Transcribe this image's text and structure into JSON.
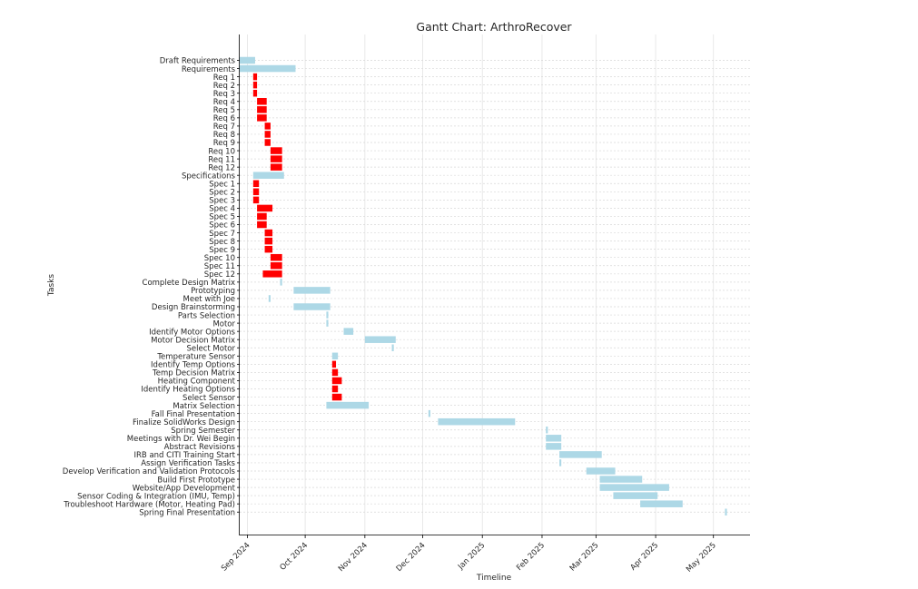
{
  "chart_data": {
    "type": "gantt",
    "title": "Gantt Chart: ArthroRecover",
    "xlabel": "Timeline",
    "ylabel": "Tasks",
    "xlim": [
      "2024-08-28",
      "2025-05-20"
    ],
    "x_ticks": [
      {
        "date": "2024-09-01",
        "label": "Sep 2024"
      },
      {
        "date": "2024-10-01",
        "label": "Oct 2024"
      },
      {
        "date": "2024-11-01",
        "label": "Nov 2024"
      },
      {
        "date": "2024-12-01",
        "label": "Dec 2024"
      },
      {
        "date": "2025-01-01",
        "label": "Jan 2025"
      },
      {
        "date": "2025-02-01",
        "label": "Feb 2025"
      },
      {
        "date": "2025-03-01",
        "label": "Mar 2025"
      },
      {
        "date": "2025-04-01",
        "label": "Apr 2025"
      },
      {
        "date": "2025-05-01",
        "label": "May 2025"
      }
    ],
    "grid": true,
    "colors": {
      "normal": "#add8e6",
      "highlight": "#ff0000"
    },
    "tasks": [
      {
        "name": "Draft Requirements",
        "start": "2024-08-28",
        "end": "2024-09-05",
        "highlight": false
      },
      {
        "name": "Requirements",
        "start": "2024-08-28",
        "end": "2024-09-26",
        "highlight": false
      },
      {
        "name": "Req 1",
        "start": "2024-09-04",
        "end": "2024-09-06",
        "highlight": true
      },
      {
        "name": "Req 2",
        "start": "2024-09-04",
        "end": "2024-09-06",
        "highlight": true
      },
      {
        "name": "Req 3",
        "start": "2024-09-04",
        "end": "2024-09-06",
        "highlight": true
      },
      {
        "name": "Req 4",
        "start": "2024-09-06",
        "end": "2024-09-11",
        "highlight": true
      },
      {
        "name": "Req 5",
        "start": "2024-09-06",
        "end": "2024-09-11",
        "highlight": true
      },
      {
        "name": "Req 6",
        "start": "2024-09-06",
        "end": "2024-09-11",
        "highlight": true
      },
      {
        "name": "Req 7",
        "start": "2024-09-10",
        "end": "2024-09-13",
        "highlight": true
      },
      {
        "name": "Req 8",
        "start": "2024-09-10",
        "end": "2024-09-13",
        "highlight": true
      },
      {
        "name": "Req 9",
        "start": "2024-09-10",
        "end": "2024-09-13",
        "highlight": true
      },
      {
        "name": "Req 10",
        "start": "2024-09-13",
        "end": "2024-09-19",
        "highlight": true
      },
      {
        "name": "Req 11",
        "start": "2024-09-13",
        "end": "2024-09-19",
        "highlight": true
      },
      {
        "name": "Req 12",
        "start": "2024-09-13",
        "end": "2024-09-19",
        "highlight": true
      },
      {
        "name": "Specifications",
        "start": "2024-09-04",
        "end": "2024-09-20",
        "highlight": false
      },
      {
        "name": "Spec 1",
        "start": "2024-09-04",
        "end": "2024-09-07",
        "highlight": true
      },
      {
        "name": "Spec 2",
        "start": "2024-09-04",
        "end": "2024-09-07",
        "highlight": true
      },
      {
        "name": "Spec 3",
        "start": "2024-09-04",
        "end": "2024-09-07",
        "highlight": true
      },
      {
        "name": "Spec 4",
        "start": "2024-09-06",
        "end": "2024-09-14",
        "highlight": true
      },
      {
        "name": "Spec 5",
        "start": "2024-09-06",
        "end": "2024-09-11",
        "highlight": true
      },
      {
        "name": "Spec 6",
        "start": "2024-09-06",
        "end": "2024-09-11",
        "highlight": true
      },
      {
        "name": "Spec 7",
        "start": "2024-09-10",
        "end": "2024-09-14",
        "highlight": true
      },
      {
        "name": "Spec 8",
        "start": "2024-09-10",
        "end": "2024-09-14",
        "highlight": true
      },
      {
        "name": "Spec 9",
        "start": "2024-09-10",
        "end": "2024-09-14",
        "highlight": true
      },
      {
        "name": "Spec 10",
        "start": "2024-09-13",
        "end": "2024-09-19",
        "highlight": true
      },
      {
        "name": "Spec 11",
        "start": "2024-09-13",
        "end": "2024-09-19",
        "highlight": true
      },
      {
        "name": "Spec 12",
        "start": "2024-09-09",
        "end": "2024-09-19",
        "highlight": true
      },
      {
        "name": "Complete Design Matrix",
        "start": "2024-09-18",
        "end": "2024-09-19",
        "highlight": false
      },
      {
        "name": "Prototyping",
        "start": "2024-09-25",
        "end": "2024-10-14",
        "highlight": false
      },
      {
        "name": "Meet with Joe",
        "start": "2024-09-12",
        "end": "2024-09-13",
        "highlight": false
      },
      {
        "name": "Design Brainstorming",
        "start": "2024-09-25",
        "end": "2024-10-14",
        "highlight": false
      },
      {
        "name": "Parts Selection",
        "start": "2024-10-12",
        "end": "2024-10-13",
        "highlight": false
      },
      {
        "name": "Motor",
        "start": "2024-10-12",
        "end": "2024-10-13",
        "highlight": false
      },
      {
        "name": "Identify Motor Options",
        "start": "2024-10-21",
        "end": "2024-10-26",
        "highlight": false
      },
      {
        "name": "Motor Decision Matrix",
        "start": "2024-11-01",
        "end": "2024-11-17",
        "highlight": false
      },
      {
        "name": "Select Motor",
        "start": "2024-11-15",
        "end": "2024-11-16",
        "highlight": false
      },
      {
        "name": "Temperature Sensor",
        "start": "2024-10-15",
        "end": "2024-10-18",
        "highlight": false
      },
      {
        "name": "Identify Temp Options",
        "start": "2024-10-15",
        "end": "2024-10-17",
        "highlight": true
      },
      {
        "name": "Temp Decision Matrix",
        "start": "2024-10-15",
        "end": "2024-10-18",
        "highlight": true
      },
      {
        "name": "Heating Component",
        "start": "2024-10-15",
        "end": "2024-10-20",
        "highlight": true
      },
      {
        "name": "Identify Heating Options",
        "start": "2024-10-15",
        "end": "2024-10-18",
        "highlight": true
      },
      {
        "name": "Select Sensor",
        "start": "2024-10-15",
        "end": "2024-10-20",
        "highlight": true
      },
      {
        "name": "Matrix Selection",
        "start": "2024-10-12",
        "end": "2024-11-03",
        "highlight": false
      },
      {
        "name": "Fall Final Presentation",
        "start": "2024-12-04",
        "end": "2024-12-05",
        "highlight": false
      },
      {
        "name": "Finalize SolidWorks Design",
        "start": "2024-12-09",
        "end": "2025-01-18",
        "highlight": false
      },
      {
        "name": "Spring Semester",
        "start": "2025-02-03",
        "end": "2025-02-04",
        "highlight": false
      },
      {
        "name": "Meetings with Dr. Wei Begin",
        "start": "2025-02-03",
        "end": "2025-02-11",
        "highlight": false
      },
      {
        "name": "Abstract Revisions",
        "start": "2025-02-03",
        "end": "2025-02-11",
        "highlight": false
      },
      {
        "name": "IRB and CITI Training Start",
        "start": "2025-02-10",
        "end": "2025-03-04",
        "highlight": false
      },
      {
        "name": "Assign Verification Tasks",
        "start": "2025-02-10",
        "end": "2025-02-11",
        "highlight": false
      },
      {
        "name": "Develop Verification and Validation Protocols",
        "start": "2025-02-24",
        "end": "2025-03-11",
        "highlight": false
      },
      {
        "name": "Build First Prototype",
        "start": "2025-03-03",
        "end": "2025-03-25",
        "highlight": false
      },
      {
        "name": "Website/App Development",
        "start": "2025-03-03",
        "end": "2025-04-08",
        "highlight": false
      },
      {
        "name": "Sensor Coding & Integration (IMU, Temp)",
        "start": "2025-03-10",
        "end": "2025-04-02",
        "highlight": false
      },
      {
        "name": "Troubleshoot Hardware (Motor, Heating Pad)",
        "start": "2025-03-24",
        "end": "2025-04-15",
        "highlight": false
      },
      {
        "name": "Spring Final Presentation",
        "start": "2025-05-07",
        "end": "2025-05-08",
        "highlight": false
      }
    ]
  }
}
